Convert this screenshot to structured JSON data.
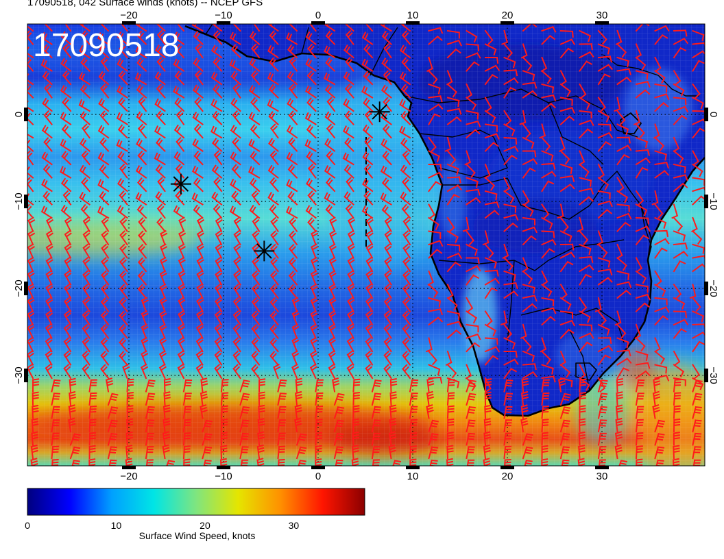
{
  "header": {
    "title": "17090518, 042 Surface winds (knots) -- NCEP GFS"
  },
  "map": {
    "stamp": "17090518",
    "region": "South Atlantic and southern Africa",
    "lon_range": [
      -30,
      42
    ],
    "lat_range": [
      -39,
      9
    ],
    "grid": true,
    "x_tick_values": [
      -20,
      -10,
      0,
      10,
      20,
      30
    ],
    "x_tick_labels": [
      "−20",
      "−10",
      "0",
      "10",
      "20",
      "30"
    ],
    "y_tick_values": [
      0,
      -10,
      -20,
      -30
    ],
    "y_tick_labels": [
      "0",
      "−10",
      "−20",
      "−30"
    ],
    "wind_barb_color": "#ff1a1a",
    "coastline_color": "#000000",
    "markers": [
      {
        "name": "asterisk",
        "lon": 6.5,
        "lat": 0.3
      },
      {
        "name": "asterisk",
        "lon": -14.5,
        "lat": -8.0
      },
      {
        "name": "asterisk",
        "lon": -5.7,
        "lat": -15.7
      }
    ]
  },
  "colorbar": {
    "title": "Surface Wind Speed, knots",
    "range": [
      0,
      38
    ],
    "tick_values": [
      0,
      10,
      20,
      30
    ],
    "tick_labels": [
      "0",
      "10",
      "20",
      "30"
    ],
    "colors": [
      "#00007f",
      "#0000ff",
      "#00a0ff",
      "#00e5e5",
      "#7fe57f",
      "#e5e500",
      "#ff9000",
      "#ff1500",
      "#8b0000"
    ]
  }
}
